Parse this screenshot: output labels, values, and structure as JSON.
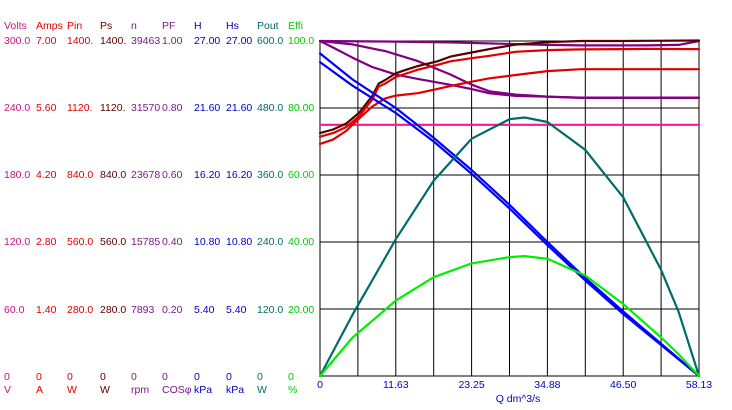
{
  "chart_data": {
    "type": "line",
    "xlabel": "Q  dm^3/s",
    "x_ticks": [
      "0",
      "11.63",
      "23.25",
      "34.88",
      "46.50",
      "58.13"
    ],
    "xlim": [
      0,
      58.13
    ],
    "grid": true,
    "axes": [
      {
        "name": "Volts",
        "unit": "V",
        "color": "#c71585",
        "ticks": [
          "300.0",
          "240.0",
          "180.0",
          "120.0",
          "60.0",
          "0"
        ]
      },
      {
        "name": "Amps",
        "unit": "A",
        "color": "#e00000",
        "ticks": [
          "7.00",
          "5.60",
          "4.20",
          "2.80",
          "1.40",
          "0"
        ]
      },
      {
        "name": "Pin",
        "unit": "W",
        "color": "#e00000",
        "ticks": [
          "1400.",
          "1120.",
          "840.0",
          "560.0",
          "280.0",
          "0"
        ]
      },
      {
        "name": "Ps",
        "unit": "W",
        "color": "#550000",
        "ticks": [
          "1400.",
          "1120.",
          "840.0",
          "560.0",
          "280.0",
          "0"
        ]
      },
      {
        "name": "n",
        "unit": "rpm",
        "color": "#7a1a8a",
        "ticks": [
          "39463",
          "31570",
          "23678",
          "15785",
          "7893",
          "0"
        ]
      },
      {
        "name": "PF",
        "unit": "COSφ",
        "color": "#7a1a8a",
        "ticks": [
          "1.00",
          "0.80",
          "0.60",
          "0.40",
          "0.20",
          "0"
        ]
      },
      {
        "name": "H",
        "unit": "kPa",
        "color": "#0000cc",
        "ticks": [
          "27.00",
          "21.60",
          "16.20",
          "10.80",
          "5.40",
          "0"
        ]
      },
      {
        "name": "Hs",
        "unit": "kPa",
        "color": "#0000cc",
        "ticks": [
          "27.00",
          "21.60",
          "16.20",
          "10.80",
          "5.40",
          "0"
        ]
      },
      {
        "name": "Pout",
        "unit": "W",
        "color": "#006b6b",
        "ticks": [
          "600.0",
          "480.0",
          "360.0",
          "240.0",
          "120.0",
          "0"
        ]
      },
      {
        "name": "Effi",
        "unit": "%",
        "color": "#00cc00",
        "ticks": [
          "100.0",
          "80.00",
          "60.00",
          "40.00",
          "20.00",
          "0"
        ]
      }
    ],
    "series": [
      {
        "axis": "Volts",
        "color": "#ff1493",
        "width": 2.2,
        "x": [
          0,
          58.13
        ],
        "y": [
          225,
          225
        ]
      },
      {
        "axis": "n",
        "color": "#800080",
        "width": 2.2,
        "x": [
          0,
          10,
          20,
          30,
          34.88,
          40,
          50,
          55,
          58.13
        ],
        "y": [
          39460,
          39400,
          39300,
          39100,
          39000,
          38950,
          38950,
          39000,
          39463
        ]
      },
      {
        "axis": "n",
        "color": "#800080",
        "width": 2.2,
        "x": [
          0,
          2,
          5,
          8,
          11.63,
          15,
          20,
          23.25,
          26,
          30,
          34.88,
          40,
          46.5,
          50,
          58.13
        ],
        "y": [
          39460,
          38700,
          37500,
          36400,
          35500,
          35000,
          34300,
          33800,
          33300,
          33000,
          32900,
          32800,
          32800,
          32800,
          32800
        ]
      },
      {
        "axis": "PF",
        "color": "#800080",
        "width": 2.2,
        "x": [
          0,
          5,
          10,
          15,
          20,
          23.25,
          26,
          30,
          34.88,
          40,
          46.5,
          50,
          58.13
        ],
        "y": [
          1.0,
          0.99,
          0.97,
          0.94,
          0.9,
          0.87,
          0.85,
          0.84,
          0.834,
          0.83,
          0.83,
          0.83,
          0.83
        ]
      },
      {
        "axis": "Ps",
        "color": "#550000",
        "width": 2.2,
        "x": [
          0,
          2,
          4,
          6,
          8,
          9,
          10,
          11.63,
          13,
          15,
          18,
          20,
          23.25,
          26,
          30,
          34.88,
          40,
          46.5,
          50,
          58.13
        ],
        "y": [
          1015,
          1030,
          1055,
          1100,
          1170,
          1222,
          1237,
          1265,
          1278,
          1295,
          1315,
          1335,
          1352,
          1366,
          1385,
          1395,
          1400,
          1400,
          1401,
          1402
        ]
      },
      {
        "axis": "Pin",
        "color": "#e00000",
        "width": 2.2,
        "x": [
          0,
          2,
          4,
          6,
          8,
          9,
          10,
          11.63,
          13,
          15,
          18,
          20,
          23.25,
          26,
          30,
          34.88,
          40,
          46.5,
          50,
          58.13
        ],
        "y": [
          1000,
          1015,
          1040,
          1085,
          1155,
          1210,
          1222,
          1250,
          1262,
          1280,
          1300,
          1315,
          1328,
          1338,
          1355,
          1362,
          1365,
          1366,
          1367,
          1366
        ]
      },
      {
        "axis": "Amps",
        "color": "#e00000",
        "width": 2.2,
        "x": [
          0,
          2,
          4,
          6,
          8,
          10,
          11.63,
          13,
          15,
          18,
          20,
          23.25,
          26,
          30,
          34.88,
          40,
          46.5,
          50,
          58.13
        ],
        "y": [
          4.85,
          4.94,
          5.12,
          5.38,
          5.63,
          5.8,
          5.86,
          5.88,
          5.91,
          6.0,
          6.06,
          6.15,
          6.22,
          6.29,
          6.37,
          6.41,
          6.41,
          6.41,
          6.41
        ]
      },
      {
        "axis": "H",
        "color": "#0000ff",
        "width": 2.2,
        "x": [
          0,
          5,
          11.63,
          17.44,
          23.25,
          29.07,
          34.88,
          40.69,
          46.5,
          52.32,
          58.13
        ],
        "y": [
          26.0,
          23.9,
          21.6,
          19.2,
          16.6,
          13.8,
          10.8,
          7.9,
          5.2,
          2.6,
          0
        ]
      },
      {
        "axis": "Hs",
        "color": "#0000ff",
        "width": 2.2,
        "x": [
          0,
          5,
          11.63,
          17.44,
          23.25,
          29.07,
          34.88,
          40.69,
          46.5,
          52.32,
          58.13
        ],
        "y": [
          25.3,
          23.4,
          21.2,
          18.9,
          16.3,
          13.5,
          10.55,
          7.7,
          5.0,
          2.5,
          0
        ]
      },
      {
        "axis": "Pout",
        "color": "#006b6b",
        "width": 2.2,
        "x": [
          0,
          5,
          11.63,
          17.44,
          23.25,
          29.07,
          31.4,
          34.88,
          40.69,
          46.5,
          52.32,
          55,
          58.13
        ],
        "y": [
          0,
          110,
          245,
          350,
          425,
          460,
          463,
          455,
          405,
          320,
          190,
          115,
          0
        ]
      },
      {
        "axis": "Effi",
        "color": "#00ee00",
        "width": 2.2,
        "x": [
          0,
          5,
          11.63,
          17.44,
          23.25,
          29.07,
          31.4,
          34.88,
          40.69,
          46.5,
          52.32,
          55,
          58.13
        ],
        "y": [
          0,
          11.5,
          22.5,
          29.5,
          33.6,
          35.5,
          35.8,
          35.0,
          30.0,
          21.5,
          11.5,
          6.5,
          0
        ]
      }
    ]
  }
}
